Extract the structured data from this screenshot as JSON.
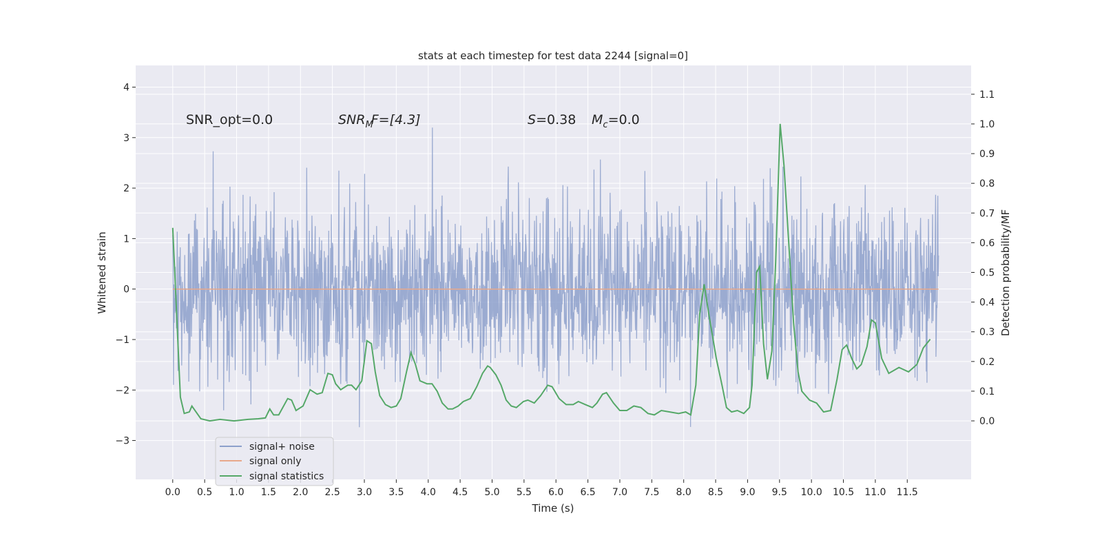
{
  "chart_data": {
    "type": "line",
    "title": "stats at each timestep for test data 2244 [signal=0]",
    "xlabel": "Time (s)",
    "ylabel": "Whitened strain",
    "ylabel_right": "Detection probability/MF",
    "xlim": [
      -0.58,
      12.5
    ],
    "ylim": [
      -3.77,
      4.43
    ],
    "ylim_right": [
      -0.197,
      1.197
    ],
    "grid": true,
    "xticks": [
      0.0,
      0.5,
      1.0,
      1.5,
      2.0,
      2.5,
      3.0,
      3.5,
      4.0,
      4.5,
      5.0,
      5.5,
      6.0,
      6.5,
      7.0,
      7.5,
      8.0,
      8.5,
      9.0,
      9.5,
      10.0,
      10.5,
      11.0,
      11.5
    ],
    "xtick_labels": [
      "0.0",
      "0.5",
      "1.0",
      "1.5",
      "2.0",
      "2.5",
      "3.0",
      "3.5",
      "4.0",
      "4.5",
      "5.0",
      "5.5",
      "6.0",
      "6.5",
      "7.0",
      "7.5",
      "8.0",
      "8.5",
      "9.0",
      "9.5",
      "10.0",
      "10.5",
      "11.0",
      "11.5"
    ],
    "yticks": [
      -3,
      -2,
      -1,
      0,
      1,
      2,
      3,
      4
    ],
    "ytick_labels": [
      "−3",
      "−2",
      "−1",
      "0",
      "1",
      "2",
      "3",
      "4"
    ],
    "yticks_right": [
      0.0,
      0.1,
      0.2,
      0.3,
      0.4,
      0.5,
      0.6,
      0.7,
      0.8,
      0.9,
      1.0,
      1.1
    ],
    "ytick_labels_right": [
      "0.0",
      "0.1",
      "0.2",
      "0.3",
      "0.4",
      "0.5",
      "0.6",
      "0.7",
      "0.8",
      "0.9",
      "1.0",
      "1.1"
    ],
    "annotations": {
      "snr_opt": "SNR_opt=0.0",
      "snr_mf_base": "SNR",
      "snr_mf_sub": "M",
      "snr_mf_rest": "F=[4.3]",
      "s_label": "S",
      "s_value": "=0.38",
      "mc_label": "M",
      "mc_sub": "c",
      "mc_value": "=0.0"
    },
    "legend": {
      "placement": "lower-left",
      "entries": [
        "signal+ noise",
        "signal only",
        "signal statistics"
      ]
    },
    "series": [
      {
        "name": "signal+ noise",
        "axis": "left",
        "color": "#8da0cb",
        "kind": "noise",
        "t_range": [
          0,
          11.99
        ],
        "samples": 2048,
        "std": 0.85,
        "seed": 2244
      },
      {
        "name": "signal only",
        "axis": "left",
        "color": "#e8a88a",
        "x": [
          0,
          11.99
        ],
        "y": [
          0,
          0
        ]
      },
      {
        "name": "signal statistics",
        "axis": "right",
        "color": "#55a868",
        "x": [
          0,
          0.12,
          0.18,
          0.26,
          0.3,
          0.44,
          0.58,
          0.74,
          0.96,
          1.18,
          1.34,
          1.45,
          1.52,
          1.58,
          1.66,
          1.8,
          1.86,
          1.93,
          2.04,
          2.15,
          2.26,
          2.34,
          2.43,
          2.5,
          2.55,
          2.63,
          2.74,
          2.8,
          2.87,
          2.96,
          3.04,
          3.11,
          3.17,
          3.24,
          3.33,
          3.42,
          3.5,
          3.57,
          3.66,
          3.73,
          3.8,
          3.87,
          3.98,
          4.06,
          4.14,
          4.22,
          4.31,
          4.38,
          4.47,
          4.55,
          4.66,
          4.76,
          4.85,
          4.93,
          4.97,
          5.06,
          5.14,
          5.22,
          5.3,
          5.38,
          5.49,
          5.56,
          5.66,
          5.76,
          5.87,
          5.94,
          6.05,
          6.16,
          6.27,
          6.35,
          6.46,
          6.57,
          6.64,
          6.73,
          6.79,
          6.9,
          7.0,
          7.11,
          7.22,
          7.33,
          7.44,
          7.54,
          7.65,
          7.78,
          7.92,
          8.03,
          8.11,
          8.19,
          8.25,
          8.32,
          8.4,
          8.51,
          8.6,
          8.67,
          8.75,
          8.84,
          8.94,
          9.03,
          9.07,
          9.14,
          9.19,
          9.25,
          9.31,
          9.38,
          9.44,
          9.51,
          9.57,
          9.65,
          9.72,
          9.79,
          9.85,
          9.97,
          10.08,
          10.19,
          10.3,
          10.4,
          10.48,
          10.55,
          10.63,
          10.71,
          10.78,
          10.87,
          10.94,
          11.0,
          11.1,
          11.21,
          11.37,
          11.52,
          11.65,
          11.75,
          11.86
        ],
        "y": [
          0.65,
          0.08,
          0.025,
          0.03,
          0.05,
          0.007,
          0.0,
          0.005,
          0.0,
          0.005,
          0.007,
          0.01,
          0.04,
          0.02,
          0.02,
          0.075,
          0.07,
          0.035,
          0.05,
          0.105,
          0.09,
          0.095,
          0.16,
          0.155,
          0.125,
          0.105,
          0.12,
          0.12,
          0.105,
          0.135,
          0.27,
          0.26,
          0.165,
          0.085,
          0.055,
          0.045,
          0.05,
          0.075,
          0.165,
          0.23,
          0.19,
          0.135,
          0.125,
          0.125,
          0.1,
          0.06,
          0.04,
          0.04,
          0.05,
          0.065,
          0.075,
          0.115,
          0.16,
          0.185,
          0.18,
          0.155,
          0.12,
          0.07,
          0.05,
          0.045,
          0.065,
          0.07,
          0.06,
          0.085,
          0.12,
          0.115,
          0.075,
          0.055,
          0.055,
          0.065,
          0.055,
          0.045,
          0.06,
          0.09,
          0.095,
          0.06,
          0.035,
          0.035,
          0.05,
          0.045,
          0.025,
          0.02,
          0.035,
          0.03,
          0.025,
          0.03,
          0.02,
          0.12,
          0.36,
          0.46,
          0.35,
          0.21,
          0.12,
          0.045,
          0.03,
          0.035,
          0.025,
          0.045,
          0.12,
          0.5,
          0.52,
          0.26,
          0.14,
          0.235,
          0.535,
          1.0,
          0.86,
          0.58,
          0.33,
          0.165,
          0.1,
          0.07,
          0.06,
          0.03,
          0.035,
          0.14,
          0.24,
          0.255,
          0.21,
          0.175,
          0.19,
          0.25,
          0.34,
          0.33,
          0.21,
          0.16,
          0.18,
          0.165,
          0.19,
          0.245,
          0.275
        ]
      }
    ]
  }
}
